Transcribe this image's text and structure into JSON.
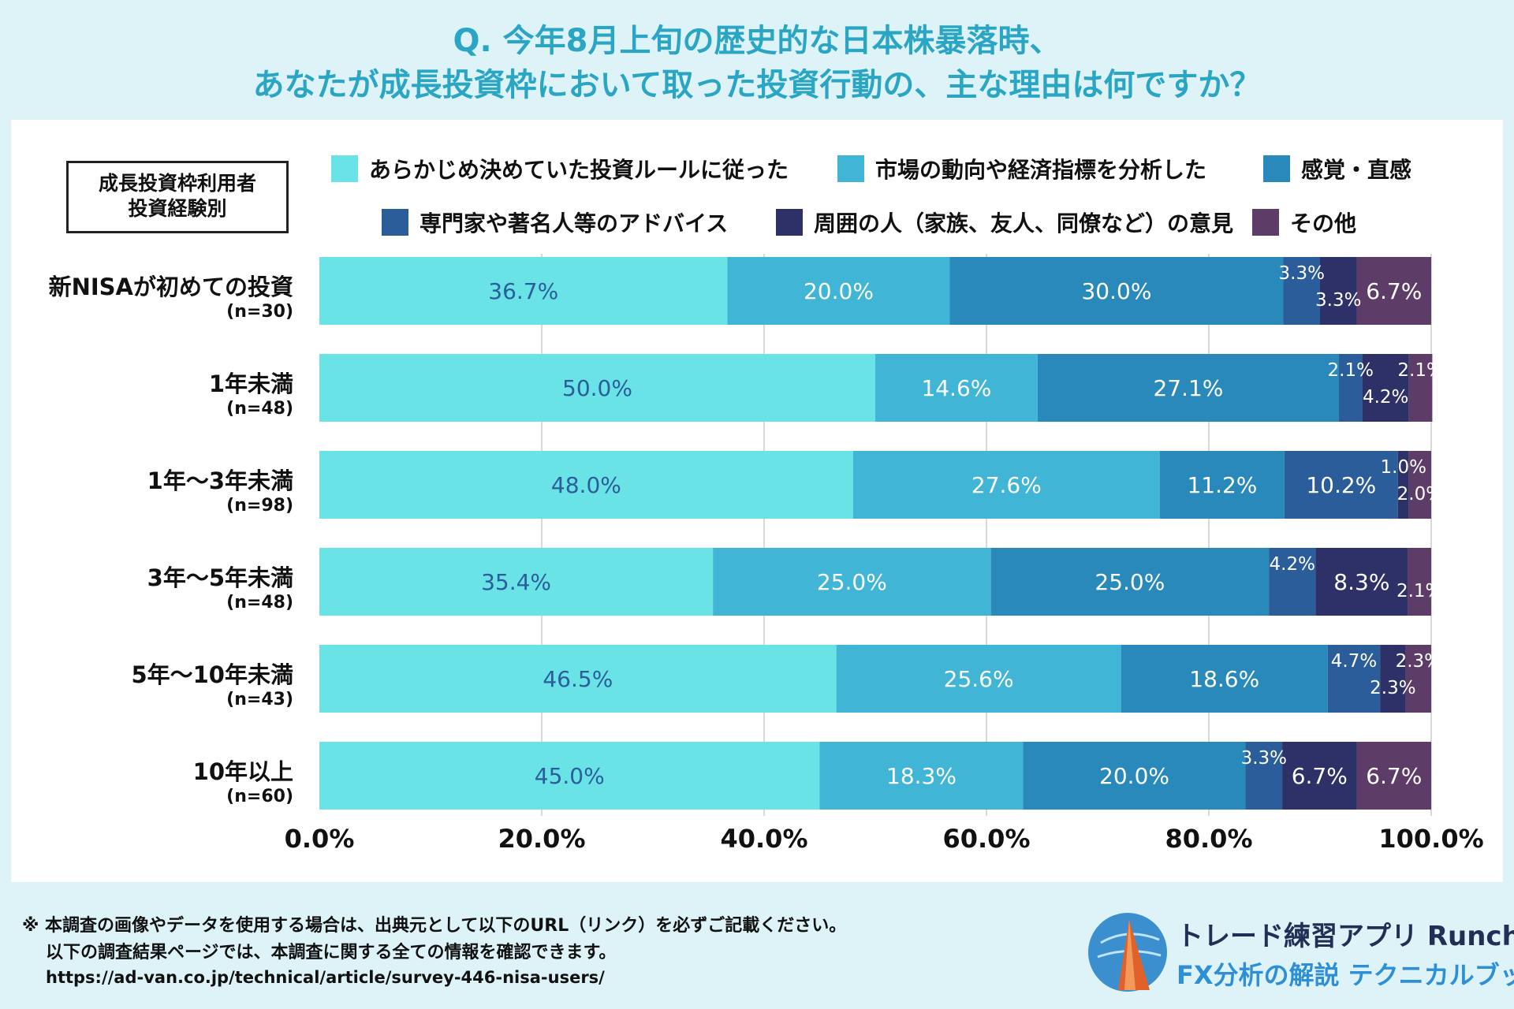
{
  "title_line1": "Q. 今年8月上旬の歴史的な日本株暴落時、",
  "title_line2": "あなたが成長投資枠において取った投資行動の、主な理由は何ですか？",
  "group_label_line1": "成長投資枠利用者",
  "group_label_line2": "投資経験別",
  "footer": {
    "note_line1": "※ 本調査の画像やデータを使用する場合は、出典元として以下のURL（リンク）を必ずご記載ください。",
    "note_line2": "以下の調査結果ページでは、本調査に関する全ての情報を確認できます。",
    "url": "https://ad-van.co.jp/technical/article/survey-446-nisa-users/"
  },
  "brand": {
    "name": "トレード練習アプリ  Runcha",
    "sub": "FX分析の解説  テクニカルブック"
  },
  "chart_data": {
    "type": "bar",
    "orientation": "horizontal",
    "stacked": true,
    "xlim": [
      0,
      100
    ],
    "x_ticks": [
      "0.0%",
      "20.0%",
      "40.0%",
      "60.0%",
      "80.0%",
      "100.0%"
    ],
    "grid": "vertical",
    "legend_position": "top",
    "categories": [
      {
        "name": "新NISAが初めての投資",
        "n": "(n=30)"
      },
      {
        "name": "1年未満",
        "n": "(n=48)"
      },
      {
        "name": "1年～3年未満",
        "n": "(n=98)"
      },
      {
        "name": "3年～5年未満",
        "n": "(n=48)"
      },
      {
        "name": "5年～10年未満",
        "n": "(n=43)"
      },
      {
        "name": "10年以上",
        "n": "(n=60)"
      }
    ],
    "series": [
      {
        "name": "あらかじめ決めていた投資ルールに従った",
        "color": "#6ae3e6",
        "label_color": "#2b5d9a",
        "values": [
          36.7,
          50.0,
          48.0,
          35.4,
          46.5,
          45.0
        ]
      },
      {
        "name": "市場の動向や経済指標を分析した",
        "color": "#40b5d6",
        "label_color": "#ffffff",
        "values": [
          20.0,
          14.6,
          27.6,
          25.0,
          25.6,
          18.3
        ]
      },
      {
        "name": "感覚・直感",
        "color": "#2a89bb",
        "label_color": "#ffffff",
        "values": [
          30.0,
          27.1,
          11.2,
          25.0,
          18.6,
          20.0
        ]
      },
      {
        "name": "専門家や著名人等のアドバイス",
        "color": "#2b5d9a",
        "label_color": "#ffffff",
        "values": [
          3.3,
          2.1,
          10.2,
          4.2,
          4.7,
          3.3
        ]
      },
      {
        "name": "周囲の人（家族、友人、同僚など）の意見",
        "color": "#2d3168",
        "label_color": "#ffffff",
        "values": [
          3.3,
          4.2,
          1.0,
          8.3,
          2.3,
          6.7
        ]
      },
      {
        "name": "その他",
        "color": "#5e3c68",
        "label_color": "#ffffff",
        "values": [
          6.7,
          2.1,
          2.0,
          2.1,
          2.3,
          6.7
        ]
      }
    ],
    "value_labels": [
      [
        "36.7%",
        "20.0%",
        "30.0%",
        "3.3%",
        "3.3%",
        "6.7%"
      ],
      [
        "50.0%",
        "14.6%",
        "27.1%",
        "2.1%",
        "4.2%",
        "2.1%"
      ],
      [
        "48.0%",
        "27.6%",
        "11.2%",
        "10.2%",
        "1.0%",
        "2.0%"
      ],
      [
        "35.4%",
        "25.0%",
        "25.0%",
        "4.2%",
        "8.3%",
        "2.1%"
      ],
      [
        "46.5%",
        "25.6%",
        "18.6%",
        "4.7%",
        "2.3%",
        "2.3%"
      ],
      [
        "45.0%",
        "18.3%",
        "20.0%",
        "3.3%",
        "6.7%",
        "6.7%"
      ]
    ]
  }
}
